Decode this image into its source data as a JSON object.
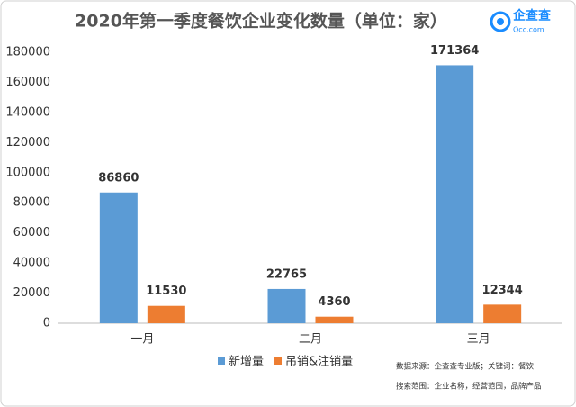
{
  "chart_data": {
    "type": "bar",
    "title": "2020年第一季度餐饮企业变化数量（单位：家）",
    "categories": [
      "一月",
      "二月",
      "三月"
    ],
    "series": [
      {
        "name": "新增量",
        "color": "#5b9bd5",
        "values": [
          86860,
          22765,
          171364
        ]
      },
      {
        "name": "吊销&注销量",
        "color": "#ed7d31",
        "values": [
          11530,
          4360,
          12344
        ]
      }
    ],
    "ylim": [
      0,
      180000
    ],
    "yticks": [
      0,
      20000,
      40000,
      60000,
      80000,
      100000,
      120000,
      140000,
      160000,
      180000
    ],
    "grid": false,
    "legend": "bottom",
    "notes": [
      "数据来源：企查查专业版；关键词：餐饮",
      "搜索范围：企业名称，经营范围，品牌产品"
    ],
    "logo": {
      "name": "企查查",
      "url": "Qcc.com"
    }
  }
}
